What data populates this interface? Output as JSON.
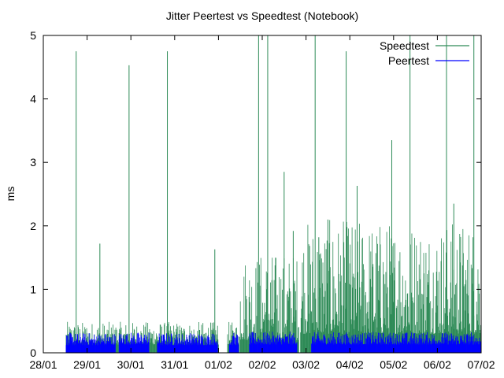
{
  "chart_data": {
    "type": "bar",
    "title": "Jitter Peertest vs Speedtest (Notebook)",
    "xlabel": "",
    "ylabel": "ms",
    "xlim": [
      "2019-01-28",
      "2019-02-07"
    ],
    "ylim": [
      0,
      5
    ],
    "x_ticks": [
      "28/01",
      "29/01",
      "30/01",
      "31/01",
      "01/02",
      "02/02",
      "03/02",
      "04/02",
      "05/02",
      "06/02",
      "07/02"
    ],
    "y_ticks": [
      "0",
      "1",
      "2",
      "3",
      "4",
      "5"
    ],
    "grid": false,
    "legend_position": "top-right",
    "colors": {
      "Speedtest": "#2e8b57",
      "Peertest": "#0000ff",
      "axis": "#000000"
    },
    "series": [
      {
        "name": "Speedtest",
        "style": "impulses",
        "segments": [
          {
            "from": "2019-01-28 12:30",
            "to": "2019-02-01 00:00",
            "base": 0.22,
            "noise": 0.09
          },
          {
            "from": "2019-02-01 05:00",
            "to": "2019-02-01 11:30",
            "base": 0.22,
            "noise": 0.09
          },
          {
            "from": "2019-02-01 12:00",
            "to": "2019-02-02 20:00",
            "base": 0.55,
            "noise": 0.35
          },
          {
            "from": "2019-02-02 21:00",
            "to": "2019-02-07 00:00",
            "base": 0.75,
            "noise": 0.45
          }
        ],
        "spikes": [
          {
            "t": "2019-01-28 18:00",
            "v": 4.75
          },
          {
            "t": "2019-01-29 07:00",
            "v": 1.72
          },
          {
            "t": "2019-01-29 23:00",
            "v": 4.53
          },
          {
            "t": "2019-01-30 20:00",
            "v": 4.75
          },
          {
            "t": "2019-01-31 22:00",
            "v": 1.63
          },
          {
            "t": "2019-02-01 22:00",
            "v": 5.0
          },
          {
            "t": "2019-02-02 03:00",
            "v": 5.0
          },
          {
            "t": "2019-02-02 12:00",
            "v": 2.85
          },
          {
            "t": "2019-02-02 17:00",
            "v": 1.92
          },
          {
            "t": "2019-02-03 05:00",
            "v": 5.0
          },
          {
            "t": "2019-02-03 07:00",
            "v": 1.82
          },
          {
            "t": "2019-02-03 12:00",
            "v": 2.1
          },
          {
            "t": "2019-02-03 22:00",
            "v": 4.75
          },
          {
            "t": "2019-02-04 04:00",
            "v": 2.63
          },
          {
            "t": "2019-02-04 23:00",
            "v": 3.35
          },
          {
            "t": "2019-02-05 09:00",
            "v": 5.0
          },
          {
            "t": "2019-02-06 05:00",
            "v": 5.0
          },
          {
            "t": "2019-02-06 09:00",
            "v": 2.35
          },
          {
            "t": "2019-02-06 20:00",
            "v": 5.0
          }
        ]
      },
      {
        "name": "Peertest",
        "style": "impulses",
        "segments": [
          {
            "from": "2019-01-28 12:30",
            "to": "2019-01-29 15:30",
            "base": 0.17,
            "noise": 0.05
          },
          {
            "from": "2019-01-29 17:30",
            "to": "2019-01-30 10:00",
            "base": 0.18,
            "noise": 0.05
          },
          {
            "from": "2019-01-30 14:30",
            "to": "2019-01-31 23:30",
            "base": 0.17,
            "noise": 0.05
          },
          {
            "from": "2019-02-01 06:00",
            "to": "2019-02-01 11:00",
            "base": 0.17,
            "noise": 0.05
          },
          {
            "from": "2019-02-01 17:00",
            "to": "2019-02-02 19:00",
            "base": 0.18,
            "noise": 0.05
          },
          {
            "from": "2019-02-03 03:00",
            "to": "2019-02-07 00:00",
            "base": 0.18,
            "noise": 0.05
          }
        ]
      }
    ]
  }
}
